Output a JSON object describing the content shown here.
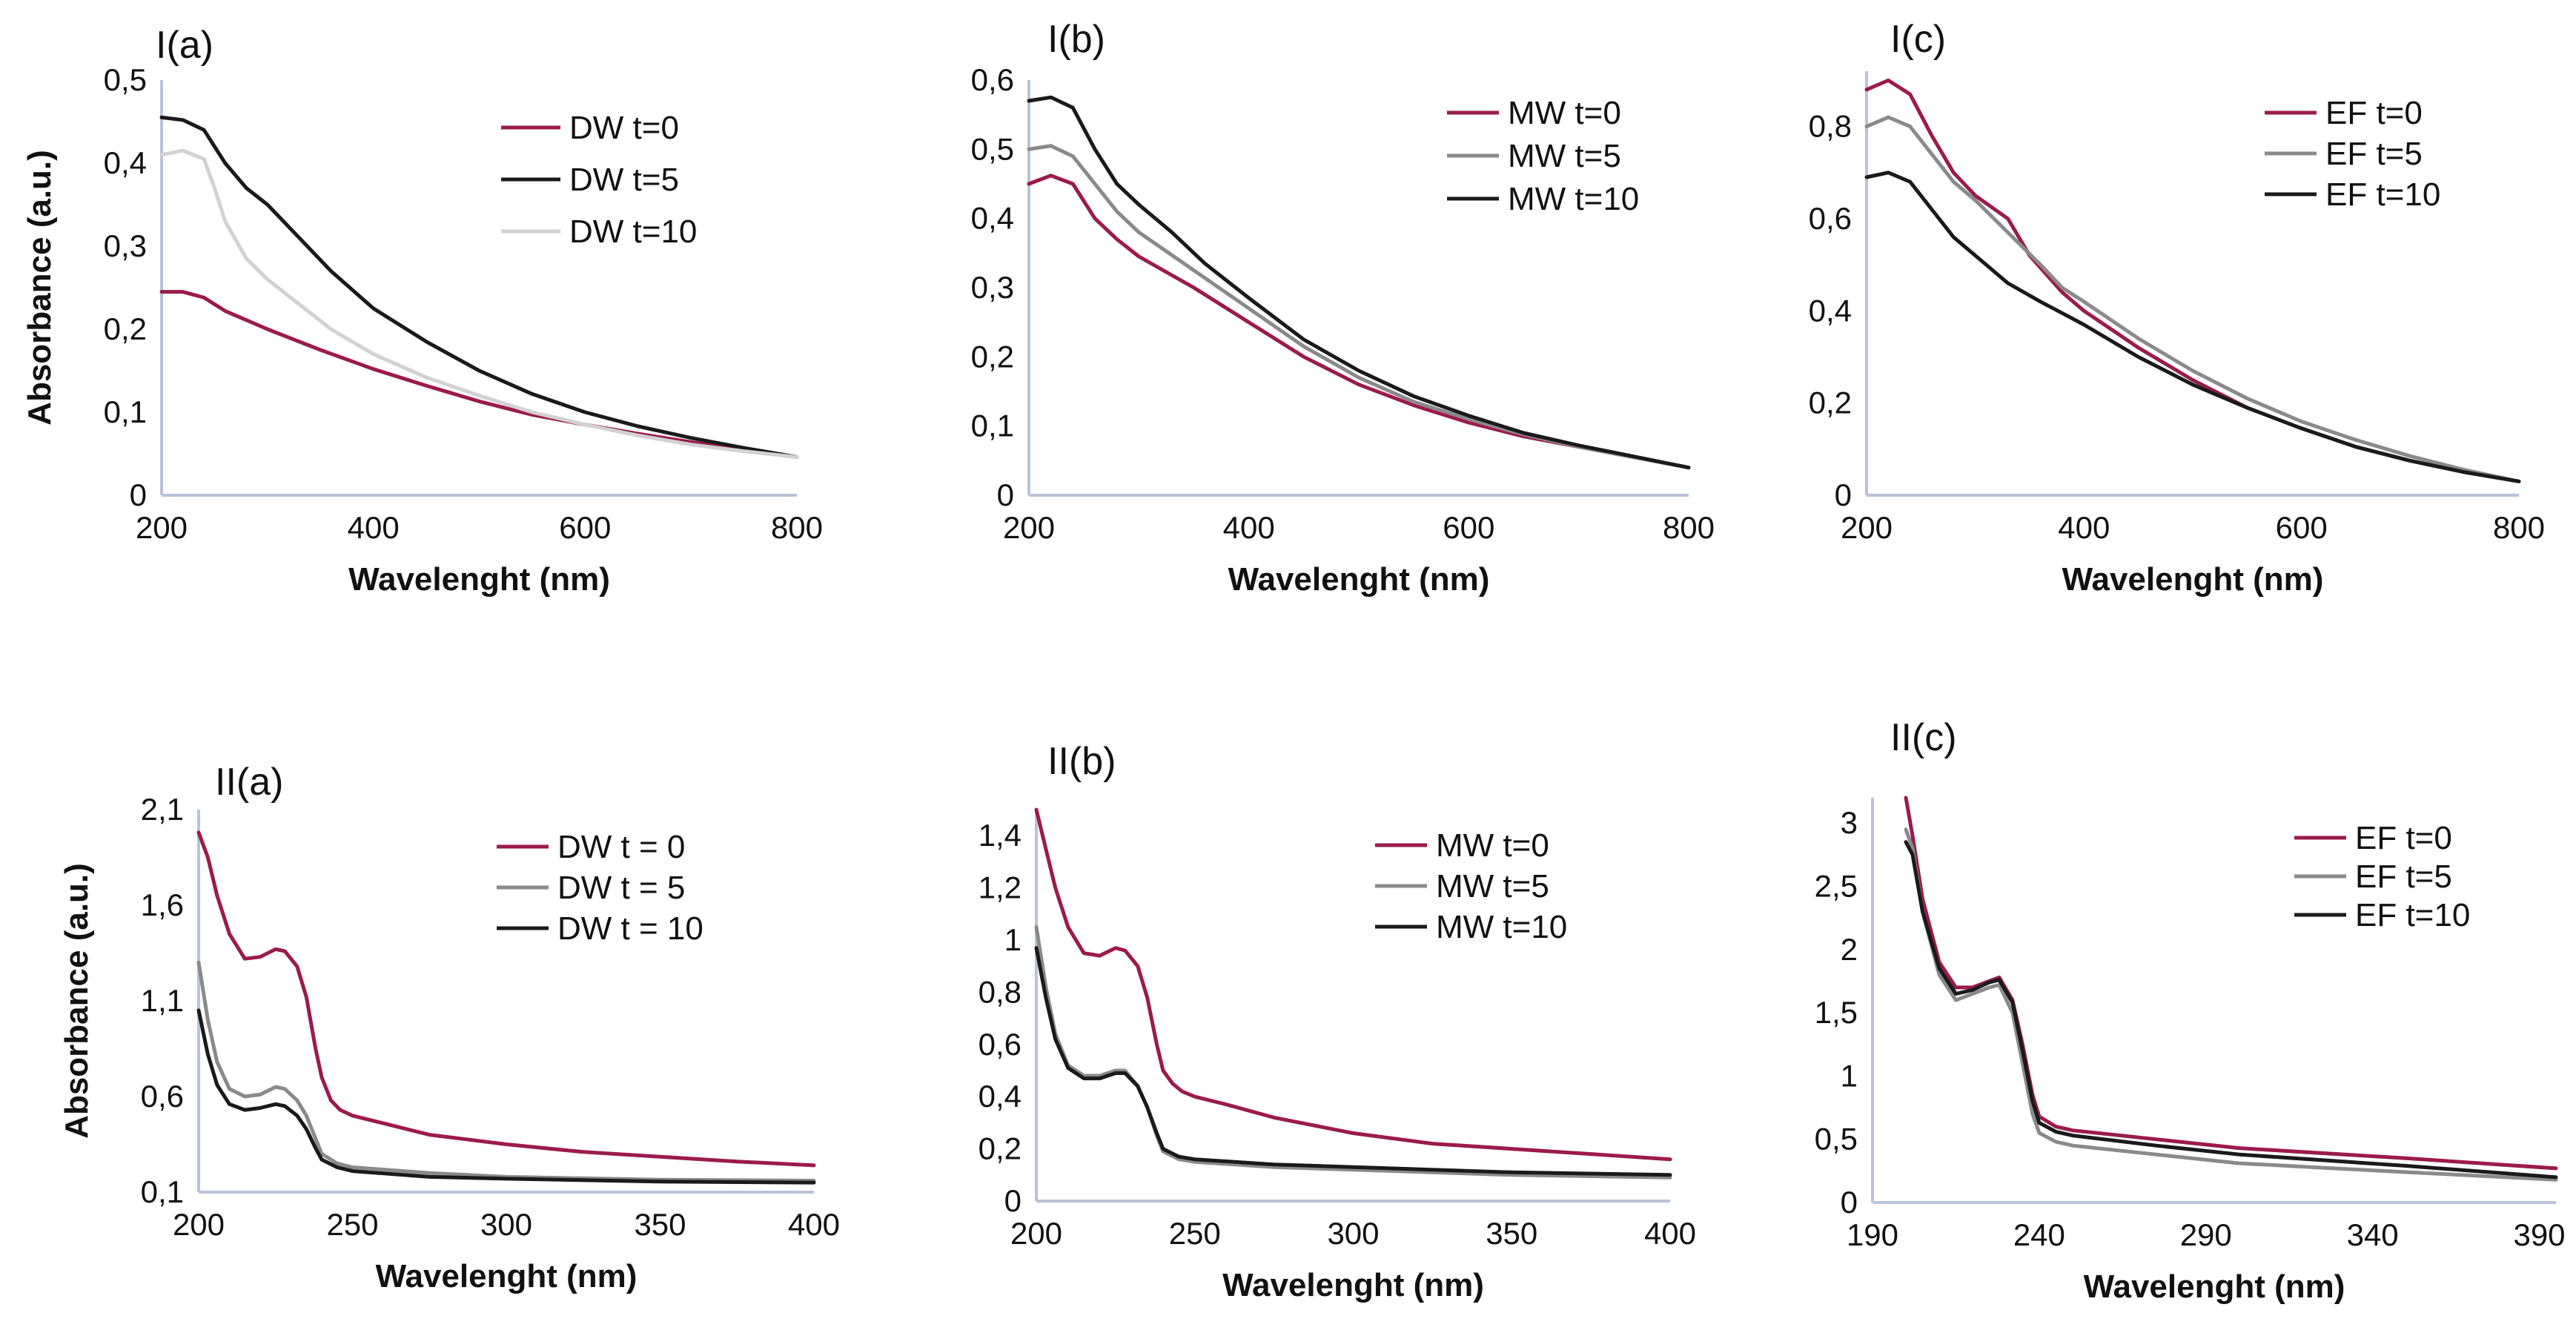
{
  "colors": {
    "crimson": "#9b1b4b",
    "black": "#1a1a1a",
    "gray": "#8a8a8a",
    "lightgray": "#d2d2d2",
    "axis": "#b9c3d9"
  },
  "chart_data": [
    {
      "id": "Ia",
      "type": "line",
      "title": "I(a)",
      "xlabel": "Wavelenght (nm)",
      "ylabel": "Absorbance (a.u.)",
      "xlim": [
        200,
        800
      ],
      "ylim": [
        0,
        0.5
      ],
      "xticks": [
        200,
        400,
        600,
        800
      ],
      "xtick_labels": [
        "200",
        "400",
        "600",
        "800"
      ],
      "yticks": [
        0,
        0.1,
        0.2,
        0.3,
        0.4,
        0.5
      ],
      "ytick_labels": [
        "0",
        "0,1",
        "0,2",
        "0,3",
        "0,4",
        "0,5"
      ],
      "legend": "top-right",
      "series": [
        {
          "name": "DW t=0",
          "color": "#9b1b4b",
          "x": [
            200,
            220,
            240,
            260,
            300,
            350,
            400,
            450,
            500,
            550,
            600,
            650,
            700,
            750,
            800
          ],
          "y": [
            0.245,
            0.245,
            0.238,
            0.222,
            0.2,
            0.175,
            0.152,
            0.132,
            0.113,
            0.097,
            0.085,
            0.074,
            0.064,
            0.055,
            0.046
          ]
        },
        {
          "name": "DW t=5",
          "color": "#1a1a1a",
          "x": [
            200,
            220,
            240,
            260,
            280,
            300,
            330,
            360,
            400,
            450,
            500,
            550,
            600,
            650,
            700,
            750,
            800
          ],
          "y": [
            0.455,
            0.452,
            0.44,
            0.4,
            0.37,
            0.35,
            0.31,
            0.27,
            0.225,
            0.185,
            0.15,
            0.122,
            0.1,
            0.083,
            0.069,
            0.057,
            0.046
          ]
        },
        {
          "name": "DW t=10",
          "color": "#d2d2d2",
          "x": [
            200,
            220,
            240,
            250,
            260,
            280,
            300,
            330,
            360,
            400,
            450,
            500,
            550,
            600,
            650,
            700,
            750,
            800
          ],
          "y": [
            0.41,
            0.415,
            0.405,
            0.37,
            0.33,
            0.285,
            0.26,
            0.23,
            0.2,
            0.17,
            0.142,
            0.12,
            0.1,
            0.085,
            0.072,
            0.061,
            0.053,
            0.046
          ]
        }
      ]
    },
    {
      "id": "Ib",
      "type": "line",
      "title": "I(b)",
      "xlabel": "Wavelenght (nm)",
      "ylabel": "",
      "xlim": [
        200,
        800
      ],
      "ylim": [
        0,
        0.6
      ],
      "xticks": [
        200,
        400,
        600,
        800
      ],
      "xtick_labels": [
        "200",
        "400",
        "600",
        "800"
      ],
      "yticks": [
        0,
        0.1,
        0.2,
        0.3,
        0.4,
        0.5,
        0.6
      ],
      "ytick_labels": [
        "0",
        "0,1",
        "0,2",
        "0,3",
        "0,4",
        "0,5",
        "0,6"
      ],
      "legend": "top-right",
      "series": [
        {
          "name": "MW t=0",
          "color": "#9b1b4b",
          "x": [
            200,
            220,
            240,
            260,
            280,
            300,
            350,
            400,
            450,
            500,
            550,
            600,
            650,
            700,
            750,
            800
          ],
          "y": [
            0.45,
            0.462,
            0.45,
            0.4,
            0.37,
            0.345,
            0.3,
            0.25,
            0.2,
            0.16,
            0.13,
            0.105,
            0.085,
            0.07,
            0.055,
            0.04
          ]
        },
        {
          "name": "MW t=5",
          "color": "#8a8a8a",
          "x": [
            200,
            220,
            240,
            260,
            280,
            300,
            350,
            400,
            450,
            500,
            550,
            600,
            650,
            700,
            750,
            800
          ],
          "y": [
            0.5,
            0.505,
            0.49,
            0.45,
            0.41,
            0.38,
            0.325,
            0.27,
            0.215,
            0.17,
            0.135,
            0.11,
            0.088,
            0.07,
            0.055,
            0.04
          ]
        },
        {
          "name": "MW t=10",
          "color": "#1a1a1a",
          "x": [
            200,
            220,
            240,
            260,
            280,
            300,
            330,
            360,
            400,
            450,
            500,
            550,
            600,
            650,
            700,
            750,
            800
          ],
          "y": [
            0.57,
            0.575,
            0.56,
            0.5,
            0.45,
            0.42,
            0.38,
            0.335,
            0.285,
            0.225,
            0.18,
            0.143,
            0.115,
            0.09,
            0.072,
            0.056,
            0.04
          ]
        }
      ]
    },
    {
      "id": "Ic",
      "type": "line",
      "title": "I(c)",
      "xlabel": "Wavelenght (nm)",
      "ylabel": "",
      "xlim": [
        200,
        800
      ],
      "ylim": [
        0,
        0.92
      ],
      "xticks": [
        200,
        400,
        600,
        800
      ],
      "xtick_labels": [
        "200",
        "400",
        "600",
        "800"
      ],
      "yticks": [
        0,
        0.2,
        0.4,
        0.6,
        0.8
      ],
      "ytick_labels": [
        "0",
        "0,2",
        "0,4",
        "0,6",
        "0,8"
      ],
      "legend": "top-right",
      "series": [
        {
          "name": "EF t=0",
          "color": "#9b1b4b",
          "x": [
            200,
            220,
            240,
            260,
            280,
            300,
            330,
            350,
            380,
            400,
            450,
            500,
            550,
            600,
            650,
            700,
            750,
            800
          ],
          "y": [
            0.88,
            0.9,
            0.87,
            0.78,
            0.7,
            0.65,
            0.6,
            0.52,
            0.44,
            0.4,
            0.32,
            0.25,
            0.19,
            0.145,
            0.105,
            0.075,
            0.05,
            0.03
          ]
        },
        {
          "name": "EF t=5",
          "color": "#8a8a8a",
          "x": [
            200,
            220,
            240,
            260,
            280,
            300,
            330,
            360,
            380,
            400,
            450,
            500,
            550,
            600,
            650,
            700,
            750,
            800
          ],
          "y": [
            0.8,
            0.82,
            0.8,
            0.74,
            0.68,
            0.64,
            0.57,
            0.5,
            0.45,
            0.42,
            0.34,
            0.27,
            0.21,
            0.16,
            0.12,
            0.085,
            0.055,
            0.03
          ]
        },
        {
          "name": "EF t=10",
          "color": "#1a1a1a",
          "x": [
            200,
            220,
            240,
            260,
            280,
            300,
            330,
            360,
            400,
            450,
            500,
            550,
            600,
            650,
            700,
            750,
            800
          ],
          "y": [
            0.69,
            0.7,
            0.68,
            0.62,
            0.56,
            0.52,
            0.46,
            0.42,
            0.37,
            0.3,
            0.24,
            0.19,
            0.145,
            0.105,
            0.075,
            0.05,
            0.03
          ]
        }
      ]
    },
    {
      "id": "IIa",
      "type": "line",
      "title": "II(a)",
      "xlabel": "Wavelenght (nm)",
      "ylabel": "Absorbance (a.u.)",
      "xlim": [
        200,
        400
      ],
      "ylim": [
        0.1,
        2.1
      ],
      "xticks": [
        200,
        250,
        300,
        350,
        400
      ],
      "xtick_labels": [
        "200",
        "250",
        "300",
        "350",
        "400"
      ],
      "yticks": [
        0.1,
        0.6,
        1.1,
        1.6,
        2.1
      ],
      "ytick_labels": [
        "0,1",
        "0,6",
        "1,1",
        "1,6",
        "2,1"
      ],
      "legend": "top-right",
      "series": [
        {
          "name": "DW t = 0",
          "color": "#9b1b4b",
          "x": [
            200,
            203,
            206,
            210,
            215,
            220,
            225,
            228,
            232,
            235,
            238,
            240,
            243,
            246,
            250,
            260,
            275,
            300,
            325,
            350,
            375,
            400
          ],
          "y": [
            1.98,
            1.85,
            1.65,
            1.45,
            1.32,
            1.33,
            1.37,
            1.36,
            1.28,
            1.12,
            0.85,
            0.7,
            0.58,
            0.53,
            0.5,
            0.46,
            0.4,
            0.35,
            0.31,
            0.285,
            0.26,
            0.24
          ]
        },
        {
          "name": "DW t = 5",
          "color": "#8a8a8a",
          "x": [
            200,
            203,
            206,
            210,
            215,
            220,
            225,
            228,
            232,
            235,
            238,
            240,
            245,
            250,
            275,
            300,
            350,
            400
          ],
          "y": [
            1.3,
            1.0,
            0.78,
            0.64,
            0.6,
            0.61,
            0.65,
            0.64,
            0.58,
            0.5,
            0.38,
            0.3,
            0.25,
            0.23,
            0.2,
            0.18,
            0.165,
            0.16
          ]
        },
        {
          "name": "DW t = 10",
          "color": "#1a1a1a",
          "x": [
            200,
            203,
            206,
            210,
            215,
            220,
            225,
            228,
            232,
            235,
            238,
            240,
            245,
            250,
            275,
            300,
            350,
            400
          ],
          "y": [
            1.05,
            0.82,
            0.66,
            0.56,
            0.53,
            0.54,
            0.56,
            0.55,
            0.5,
            0.43,
            0.33,
            0.27,
            0.23,
            0.21,
            0.18,
            0.17,
            0.155,
            0.15
          ]
        }
      ]
    },
    {
      "id": "IIb",
      "type": "line",
      "title": "II(b)",
      "xlabel": "Wavelenght (nm)",
      "ylabel": "",
      "xlim": [
        200,
        400
      ],
      "ylim": [
        0,
        1.5
      ],
      "xticks": [
        200,
        250,
        300,
        350,
        400
      ],
      "xtick_labels": [
        "200",
        "250",
        "300",
        "350",
        "400"
      ],
      "yticks": [
        0,
        0.2,
        0.4,
        0.6,
        0.8,
        1,
        1.2,
        1.4
      ],
      "ytick_labels": [
        "0",
        "0,2",
        "0,4",
        "0,6",
        "0,8",
        "1",
        "1,2",
        "1,4"
      ],
      "legend": "top-right",
      "series": [
        {
          "name": "MW t=0",
          "color": "#9b1b4b",
          "x": [
            200,
            203,
            206,
            210,
            215,
            220,
            225,
            228,
            232,
            235,
            238,
            240,
            243,
            246,
            250,
            260,
            275,
            300,
            325,
            350,
            375,
            400
          ],
          "y": [
            1.5,
            1.35,
            1.2,
            1.05,
            0.95,
            0.94,
            0.97,
            0.96,
            0.9,
            0.78,
            0.6,
            0.5,
            0.45,
            0.42,
            0.4,
            0.37,
            0.32,
            0.26,
            0.22,
            0.2,
            0.18,
            0.16
          ]
        },
        {
          "name": "MW t=5",
          "color": "#8a8a8a",
          "x": [
            200,
            203,
            206,
            210,
            215,
            220,
            225,
            228,
            232,
            235,
            238,
            240,
            245,
            250,
            275,
            300,
            350,
            400
          ],
          "y": [
            1.05,
            0.82,
            0.64,
            0.52,
            0.48,
            0.48,
            0.5,
            0.5,
            0.44,
            0.36,
            0.25,
            0.19,
            0.16,
            0.15,
            0.13,
            0.12,
            0.1,
            0.09
          ]
        },
        {
          "name": "MW t=10",
          "color": "#1a1a1a",
          "x": [
            200,
            203,
            206,
            210,
            215,
            220,
            225,
            228,
            232,
            235,
            238,
            240,
            245,
            250,
            275,
            300,
            350,
            400
          ],
          "y": [
            0.97,
            0.78,
            0.62,
            0.51,
            0.47,
            0.47,
            0.49,
            0.49,
            0.44,
            0.36,
            0.26,
            0.2,
            0.17,
            0.16,
            0.14,
            0.13,
            0.11,
            0.1
          ]
        }
      ]
    },
    {
      "id": "IIc",
      "type": "line",
      "title": "II(c)",
      "xlabel": "Wavelenght (nm)",
      "ylabel": "",
      "xlim": [
        190,
        395
      ],
      "ylim": [
        0,
        3.2
      ],
      "xticks": [
        190,
        240,
        290,
        340,
        390
      ],
      "xtick_labels": [
        "190",
        "240",
        "290",
        "340",
        "390"
      ],
      "yticks": [
        0,
        0.5,
        1,
        1.5,
        2,
        2.5,
        3
      ],
      "ytick_labels": [
        "0",
        "0,5",
        "1",
        "1,5",
        "2",
        "2,5",
        "3"
      ],
      "legend": "top-right",
      "series": [
        {
          "name": "EF t=0",
          "color": "#9b1b4b",
          "x": [
            200,
            202,
            205,
            210,
            215,
            220,
            225,
            228,
            232,
            235,
            238,
            240,
            245,
            250,
            275,
            300,
            350,
            395
          ],
          "y": [
            3.2,
            2.9,
            2.4,
            1.9,
            1.7,
            1.7,
            1.75,
            1.78,
            1.6,
            1.25,
            0.85,
            0.68,
            0.6,
            0.57,
            0.5,
            0.43,
            0.35,
            0.27
          ]
        },
        {
          "name": "EF t=5",
          "color": "#8a8a8a",
          "x": [
            200,
            202,
            205,
            210,
            215,
            220,
            225,
            228,
            232,
            235,
            238,
            240,
            245,
            250,
            275,
            300,
            350,
            395
          ],
          "y": [
            2.95,
            2.8,
            2.3,
            1.8,
            1.6,
            1.65,
            1.7,
            1.72,
            1.5,
            1.1,
            0.7,
            0.55,
            0.48,
            0.45,
            0.38,
            0.31,
            0.24,
            0.18
          ]
        },
        {
          "name": "EF t=10",
          "color": "#1a1a1a",
          "x": [
            200,
            202,
            205,
            210,
            215,
            220,
            225,
            228,
            232,
            235,
            238,
            240,
            245,
            250,
            275,
            300,
            350,
            395
          ],
          "y": [
            2.85,
            2.75,
            2.3,
            1.85,
            1.65,
            1.68,
            1.74,
            1.76,
            1.58,
            1.2,
            0.8,
            0.63,
            0.56,
            0.53,
            0.45,
            0.38,
            0.29,
            0.2
          ]
        }
      ]
    }
  ]
}
